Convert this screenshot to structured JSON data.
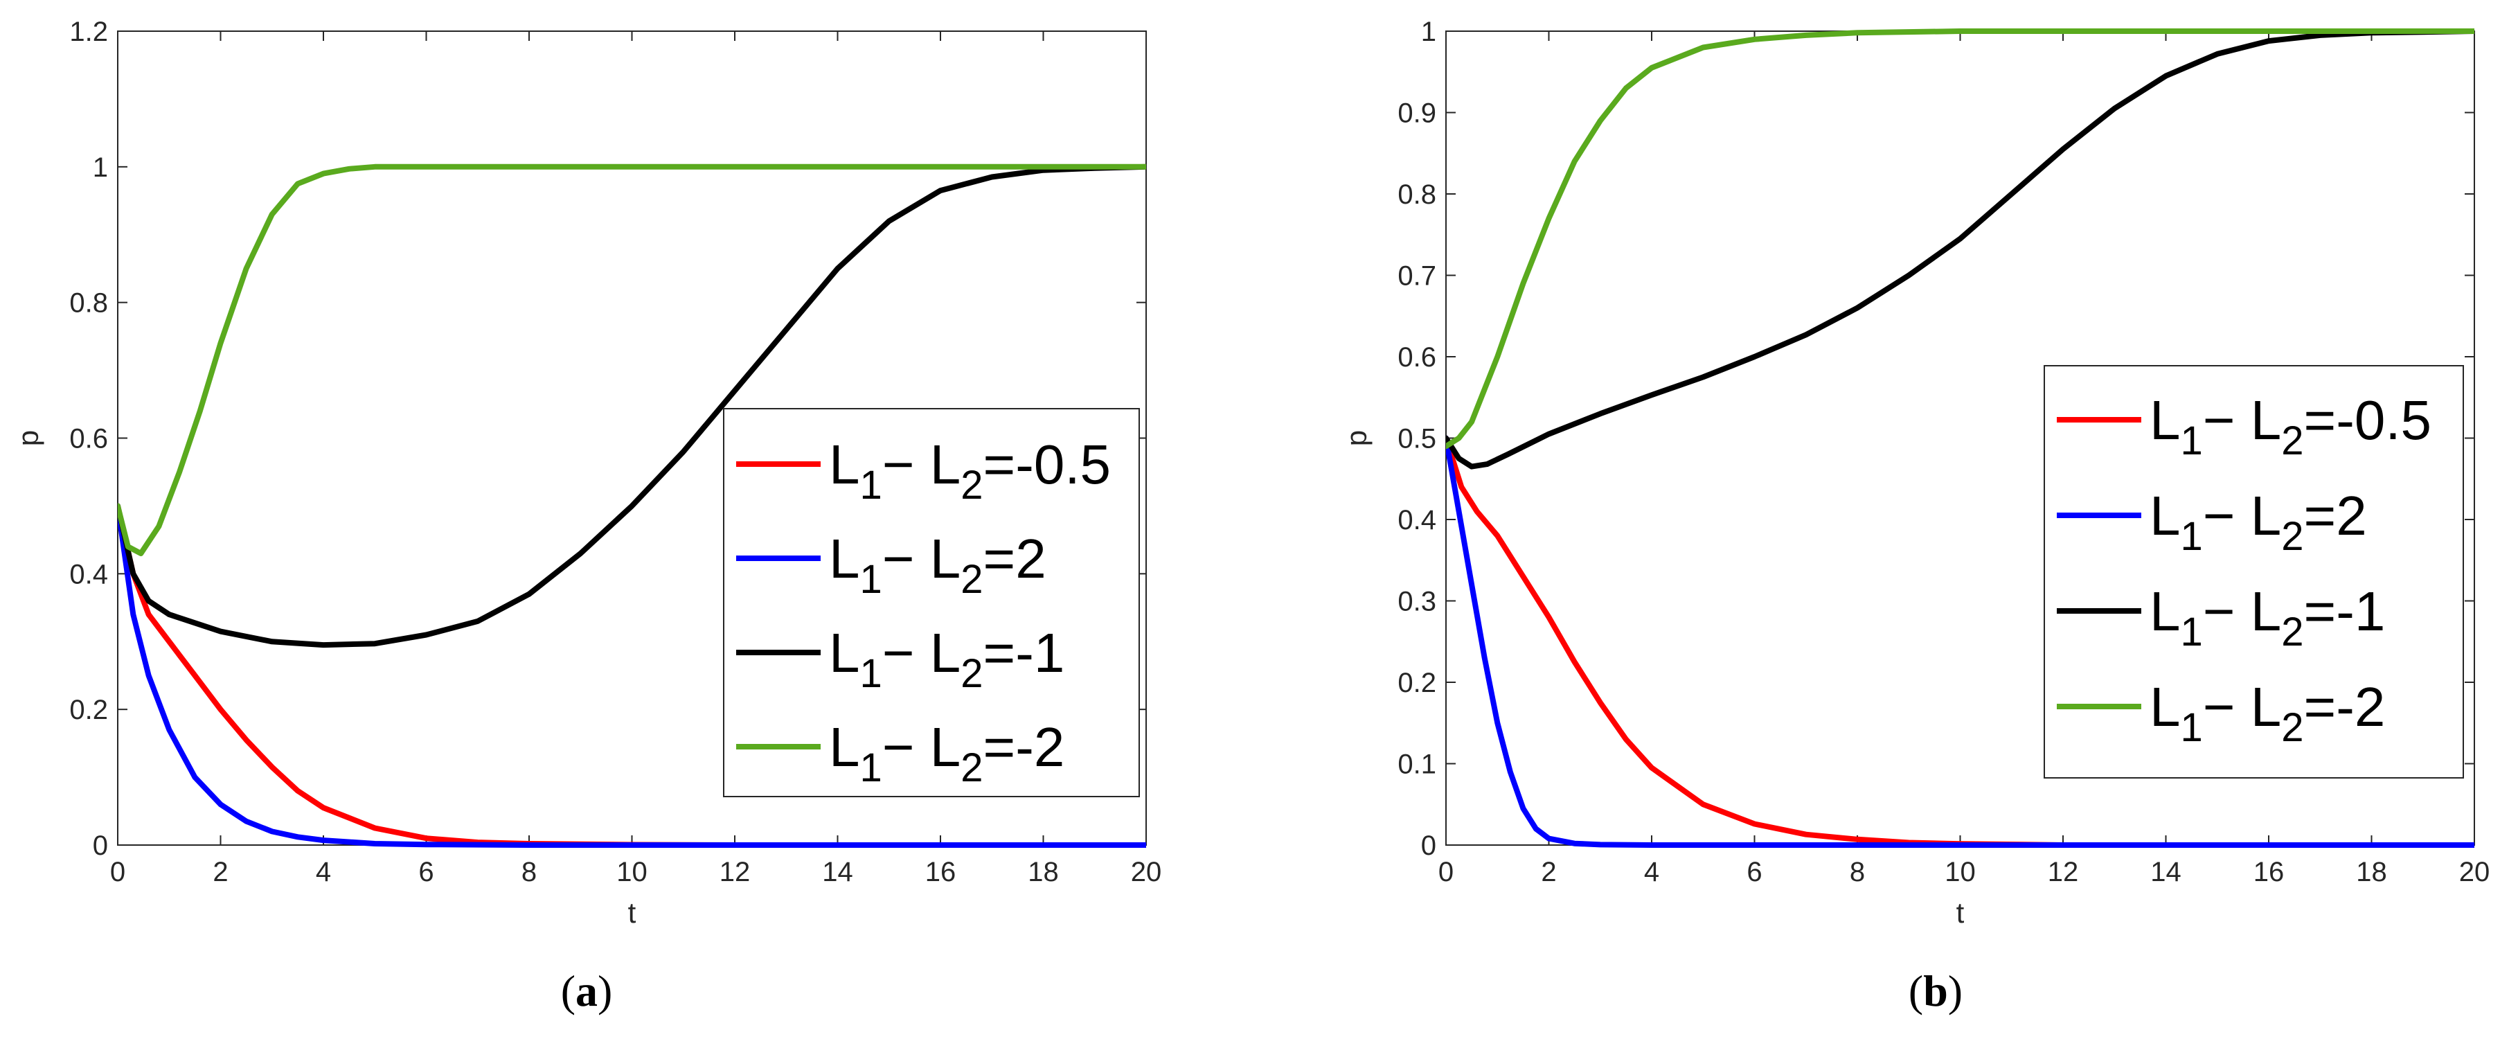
{
  "chart_data": [
    {
      "type": "line",
      "panel_label": "(a)",
      "panel_letter": "a",
      "xlabel": "t",
      "ylabel": "p",
      "xlim": [
        0,
        20
      ],
      "ylim": [
        0,
        1.2
      ],
      "xticks": [
        0,
        2,
        4,
        6,
        8,
        10,
        12,
        14,
        16,
        18,
        20
      ],
      "yticks": [
        0,
        0.2,
        0.4,
        0.6,
        0.8,
        1,
        1.2
      ],
      "ytick_labels": [
        "0",
        "0.2",
        "0.4",
        "0.6",
        "0.8",
        "1",
        "1.2"
      ],
      "grid": false,
      "legend_position": "right-middle",
      "series": [
        {
          "legend": {
            "L": "L",
            "sub1": "1",
            "minus": "−",
            "sub2": "2",
            "value": "=-0.5"
          },
          "color": "#ff0000",
          "x": [
            0,
            0.3,
            0.6,
            1,
            1.5,
            2,
            2.5,
            3,
            3.5,
            4,
            5,
            6,
            7,
            8,
            10,
            12,
            14,
            16,
            18,
            20
          ],
          "y": [
            0.5,
            0.4,
            0.34,
            0.3,
            0.25,
            0.2,
            0.155,
            0.115,
            0.08,
            0.055,
            0.025,
            0.01,
            0.004,
            0.002,
            0.0005,
            0,
            0,
            0,
            0,
            0
          ]
        },
        {
          "legend": {
            "L": "L",
            "sub1": "1",
            "minus": "−",
            "sub2": "2",
            "value": "=2"
          },
          "color": "#0000ff",
          "x": [
            0,
            0.3,
            0.6,
            1,
            1.5,
            2,
            2.5,
            3,
            3.5,
            4,
            5,
            6,
            8,
            10,
            12,
            14,
            16,
            18,
            20
          ],
          "y": [
            0.5,
            0.34,
            0.25,
            0.17,
            0.1,
            0.06,
            0.035,
            0.02,
            0.012,
            0.007,
            0.002,
            0.0008,
            0,
            0,
            0,
            0,
            0,
            0,
            0
          ]
        },
        {
          "legend": {
            "L": "L",
            "sub1": "1",
            "minus": "−",
            "sub2": "2",
            "value": "=-1"
          },
          "color": "#000000",
          "x": [
            0,
            0.3,
            0.6,
            1,
            2,
            3,
            4,
            5,
            6,
            7,
            8,
            9,
            10,
            11,
            12,
            13,
            14,
            15,
            16,
            17,
            18,
            19,
            20
          ],
          "y": [
            0.5,
            0.4,
            0.36,
            0.34,
            0.315,
            0.3,
            0.295,
            0.297,
            0.31,
            0.33,
            0.37,
            0.43,
            0.5,
            0.58,
            0.67,
            0.76,
            0.85,
            0.92,
            0.965,
            0.985,
            0.995,
            0.998,
            1
          ]
        },
        {
          "legend": {
            "L": "L",
            "sub1": "1",
            "minus": "−",
            "sub2": "2",
            "value": "=-2"
          },
          "color": "#5aaa1e",
          "x": [
            0,
            0.2,
            0.45,
            0.8,
            1.2,
            1.6,
            2,
            2.5,
            3,
            3.5,
            4,
            4.5,
            5,
            6,
            8,
            10,
            12,
            14,
            16,
            18,
            20
          ],
          "y": [
            0.5,
            0.44,
            0.43,
            0.47,
            0.55,
            0.64,
            0.74,
            0.85,
            0.93,
            0.975,
            0.99,
            0.997,
            1,
            1,
            1,
            1,
            1,
            1,
            1,
            1,
            1
          ]
        }
      ]
    },
    {
      "type": "line",
      "panel_label": "(b)",
      "panel_letter": "b",
      "xlabel": "t",
      "ylabel": "p",
      "xlim": [
        0,
        20
      ],
      "ylim": [
        0,
        1
      ],
      "xticks": [
        0,
        2,
        4,
        6,
        8,
        10,
        12,
        14,
        16,
        18,
        20
      ],
      "yticks": [
        0,
        0.1,
        0.2,
        0.3,
        0.4,
        0.5,
        0.6,
        0.7,
        0.8,
        0.9,
        1
      ],
      "ytick_labels": [
        "0",
        "0.1",
        "0.2",
        "0.3",
        "0.4",
        "0.5",
        "0.6",
        "0.7",
        "0.8",
        "0.9",
        "1"
      ],
      "grid": false,
      "legend_position": "right-middle",
      "series": [
        {
          "legend": {
            "L": "L",
            "sub1": "1",
            "minus": "−",
            "sub2": "2",
            "value": "=-0.5"
          },
          "color": "#ff0000",
          "x": [
            0,
            0.3,
            0.6,
            1,
            1.5,
            2,
            2.5,
            3,
            3.5,
            4,
            5,
            6,
            7,
            8,
            9,
            10,
            12,
            14,
            16,
            18,
            20
          ],
          "y": [
            0.5,
            0.44,
            0.41,
            0.38,
            0.33,
            0.28,
            0.225,
            0.175,
            0.13,
            0.095,
            0.05,
            0.026,
            0.013,
            0.007,
            0.003,
            0.0015,
            0,
            0,
            0,
            0,
            0
          ]
        },
        {
          "legend": {
            "L": "L",
            "sub1": "1",
            "minus": "−",
            "sub2": "2",
            "value": "=2"
          },
          "color": "#0000ff",
          "x": [
            0,
            0.25,
            0.5,
            0.75,
            1,
            1.25,
            1.5,
            1.75,
            2,
            2.5,
            3,
            4,
            6,
            8,
            10,
            12,
            14,
            16,
            18,
            20
          ],
          "y": [
            0.5,
            0.41,
            0.32,
            0.23,
            0.15,
            0.09,
            0.045,
            0.02,
            0.008,
            0.002,
            0.0005,
            0,
            0,
            0,
            0,
            0,
            0,
            0,
            0,
            0
          ]
        },
        {
          "legend": {
            "L": "L",
            "sub1": "1",
            "minus": "−",
            "sub2": "2",
            "value": "=-1"
          },
          "color": "#000000",
          "x": [
            0,
            0.25,
            0.5,
            0.8,
            1.2,
            2,
            3,
            4,
            5,
            6,
            7,
            8,
            9,
            10,
            11,
            12,
            13,
            14,
            15,
            16,
            17,
            18,
            19,
            20
          ],
          "y": [
            0.5,
            0.475,
            0.465,
            0.468,
            0.48,
            0.505,
            0.53,
            0.553,
            0.575,
            0.6,
            0.627,
            0.66,
            0.7,
            0.745,
            0.8,
            0.855,
            0.905,
            0.945,
            0.972,
            0.988,
            0.995,
            0.998,
            0.999,
            1
          ]
        },
        {
          "legend": {
            "L": "L",
            "sub1": "1",
            "minus": "−",
            "sub2": "2",
            "value": "=-2"
          },
          "color": "#5aaa1e",
          "x": [
            0,
            0.25,
            0.5,
            1,
            1.5,
            2,
            2.5,
            3,
            3.5,
            4,
            5,
            6,
            7,
            8,
            10,
            12,
            14,
            16,
            18,
            20
          ],
          "y": [
            0.49,
            0.5,
            0.52,
            0.6,
            0.69,
            0.77,
            0.84,
            0.89,
            0.93,
            0.955,
            0.98,
            0.99,
            0.995,
            0.998,
            1,
            1,
            1,
            1,
            1,
            1
          ]
        }
      ]
    }
  ]
}
